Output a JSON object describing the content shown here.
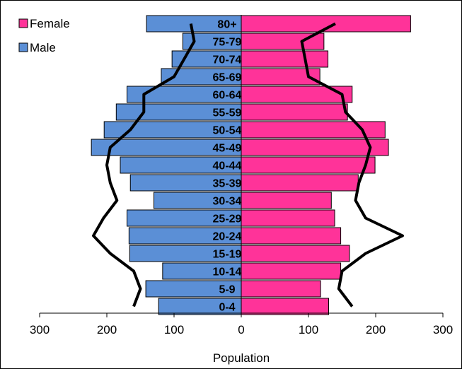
{
  "chart_data": {
    "type": "bar",
    "subtype": "population-pyramid",
    "categories": [
      "80+",
      "75-79",
      "70-74",
      "65-69",
      "60-64",
      "55-59",
      "50-54",
      "45-49",
      "40-44",
      "35-39",
      "30-34",
      "25-29",
      "20-24",
      "15-19",
      "10-14",
      "5-9",
      "0-4"
    ],
    "series": [
      {
        "name": "Female",
        "color": "#ff3399",
        "side": "right",
        "values": [
          252,
          123,
          129,
          117,
          165,
          158,
          214,
          219,
          199,
          174,
          134,
          139,
          148,
          161,
          148,
          118,
          130
        ]
      },
      {
        "name": "Male",
        "color": "#5b8fd6",
        "side": "left",
        "values": [
          141,
          87,
          103,
          119,
          170,
          186,
          204,
          223,
          180,
          165,
          130,
          170,
          167,
          166,
          117,
          142,
          123
        ]
      }
    ],
    "overlay_lines": {
      "color": "#000000",
      "female": [
        140,
        90,
        95,
        100,
        150,
        155,
        180,
        192,
        185,
        175,
        170,
        185,
        240,
        185,
        150,
        145,
        165
      ],
      "male": [
        75,
        70,
        85,
        100,
        145,
        145,
        165,
        195,
        200,
        195,
        185,
        205,
        220,
        195,
        160,
        150,
        160
      ]
    },
    "x_ticks": [
      "300",
      "200",
      "100",
      "0",
      "100",
      "200",
      "300"
    ],
    "xlabel": "Population",
    "xlim": [
      -300,
      300
    ],
    "legend": {
      "placement": "top-left",
      "entries": [
        "Female",
        "Male"
      ]
    },
    "grid": false
  }
}
